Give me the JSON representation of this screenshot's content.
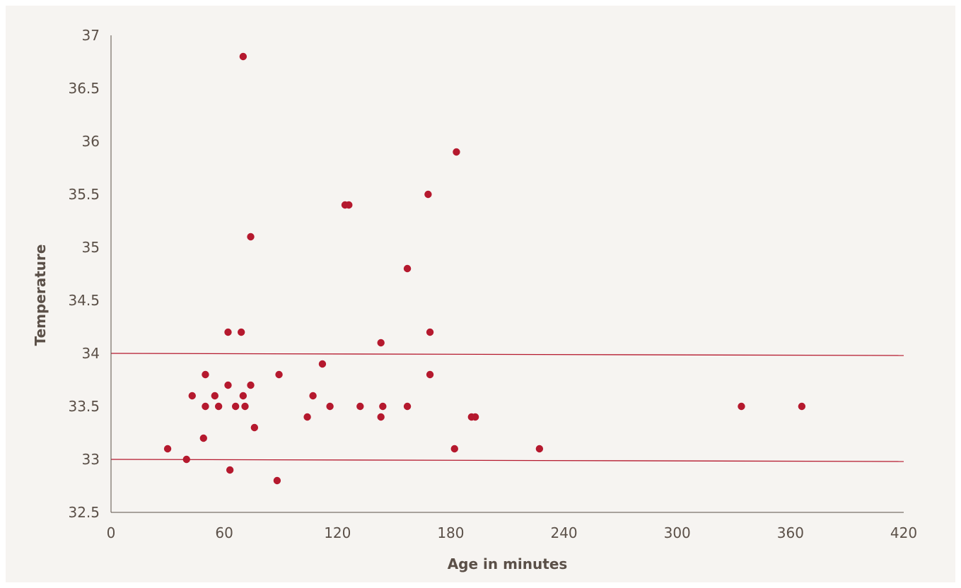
{
  "chart_data": {
    "type": "scatter",
    "title": "",
    "xlabel": "Age in minutes",
    "ylabel": "Temperature",
    "xlim": [
      0,
      420
    ],
    "ylim": [
      32.5,
      37
    ],
    "x_ticks": [
      "0",
      "60",
      "120",
      "180",
      "240",
      "300",
      "360",
      "420"
    ],
    "y_ticks": [
      "32.5",
      "33",
      "33.5",
      "34",
      "34.5",
      "35",
      "35.5",
      "36",
      "36.5",
      "37"
    ],
    "grid": false,
    "legend": "none",
    "point_color": "#b5192e",
    "line_color": "#b5192e",
    "axis_color": "#5b5048",
    "reference_lines": [
      {
        "x": [
          0,
          420
        ],
        "y": [
          34.0,
          33.98
        ]
      },
      {
        "x": [
          0,
          420
        ],
        "y": [
          33.0,
          32.98
        ]
      }
    ],
    "points": [
      {
        "x": 30,
        "y": 33.1
      },
      {
        "x": 40,
        "y": 33.0
      },
      {
        "x": 43,
        "y": 33.6
      },
      {
        "x": 49,
        "y": 33.2
      },
      {
        "x": 50,
        "y": 33.8
      },
      {
        "x": 50,
        "y": 33.5
      },
      {
        "x": 55,
        "y": 33.6
      },
      {
        "x": 57,
        "y": 33.5
      },
      {
        "x": 62,
        "y": 34.2
      },
      {
        "x": 62,
        "y": 33.7
      },
      {
        "x": 63,
        "y": 32.9
      },
      {
        "x": 66,
        "y": 33.5
      },
      {
        "x": 69,
        "y": 34.2
      },
      {
        "x": 70,
        "y": 36.8
      },
      {
        "x": 70,
        "y": 33.6
      },
      {
        "x": 71,
        "y": 33.5
      },
      {
        "x": 74,
        "y": 35.1
      },
      {
        "x": 74,
        "y": 33.7
      },
      {
        "x": 76,
        "y": 33.3
      },
      {
        "x": 88,
        "y": 32.8
      },
      {
        "x": 89,
        "y": 33.8
      },
      {
        "x": 104,
        "y": 33.4
      },
      {
        "x": 107,
        "y": 33.6
      },
      {
        "x": 112,
        "y": 33.9
      },
      {
        "x": 116,
        "y": 33.5
      },
      {
        "x": 124,
        "y": 35.4
      },
      {
        "x": 126,
        "y": 35.4
      },
      {
        "x": 132,
        "y": 33.5
      },
      {
        "x": 143,
        "y": 34.1
      },
      {
        "x": 143,
        "y": 33.4
      },
      {
        "x": 144,
        "y": 33.5
      },
      {
        "x": 157,
        "y": 34.8
      },
      {
        "x": 157,
        "y": 33.5
      },
      {
        "x": 168,
        "y": 35.5
      },
      {
        "x": 169,
        "y": 34.2
      },
      {
        "x": 169,
        "y": 33.8
      },
      {
        "x": 182,
        "y": 33.1
      },
      {
        "x": 183,
        "y": 35.9
      },
      {
        "x": 191,
        "y": 33.4
      },
      {
        "x": 193,
        "y": 33.4
      },
      {
        "x": 227,
        "y": 33.1
      },
      {
        "x": 334,
        "y": 33.5
      },
      {
        "x": 366,
        "y": 33.5
      }
    ]
  }
}
